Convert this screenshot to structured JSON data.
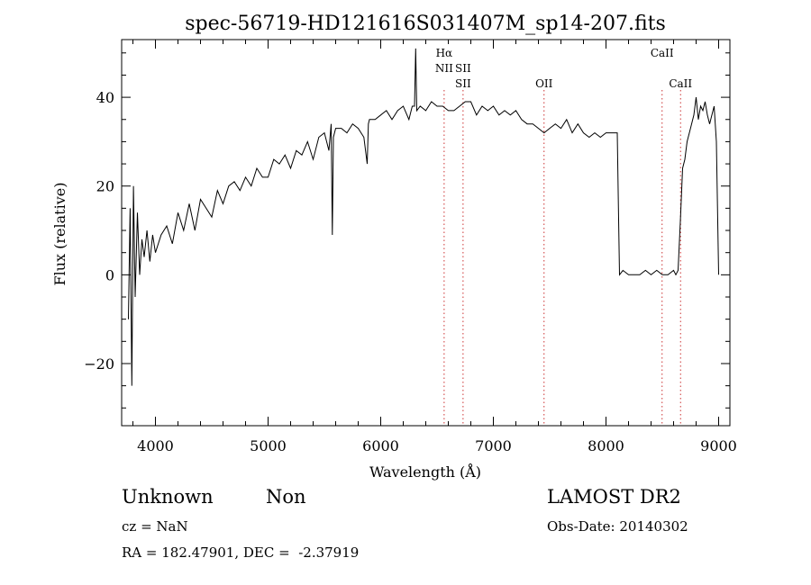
{
  "chart_data": {
    "type": "line",
    "title": "spec-56719-HD121616S031407M_sp14-207.fits",
    "xlabel": "Wavelength (Å)",
    "ylabel": "Flux (relative)",
    "xlim": [
      3700,
      9100
    ],
    "ylim": [
      -34,
      53
    ],
    "x_ticks": [
      4000,
      5000,
      6000,
      7000,
      8000,
      9000
    ],
    "y_ticks": [
      -20,
      0,
      20,
      40
    ],
    "grid": false,
    "line_color": "#000000",
    "marker_color": "#cc3333",
    "line_markers": [
      {
        "x": 6563,
        "labels": [
          "Hα",
          "NII"
        ]
      },
      {
        "x": 6731,
        "labels": [
          "SII",
          "SII"
        ]
      },
      {
        "x": 7450,
        "labels": [
          "OII"
        ]
      },
      {
        "x": 8498,
        "labels": [
          "CaII"
        ]
      },
      {
        "x": 8662,
        "labels": [
          "CaII"
        ]
      }
    ],
    "series": [
      {
        "x": [
          3760,
          3775,
          3790,
          3805,
          3820,
          3840,
          3860,
          3880,
          3900,
          3925,
          3950,
          3975,
          4000,
          4050,
          4100,
          4150,
          4200,
          4250,
          4300,
          4350,
          4400,
          4450,
          4500,
          4550,
          4600,
          4650,
          4700,
          4750,
          4800,
          4850,
          4900,
          4950,
          5000,
          5050,
          5100,
          5150,
          5200,
          5250,
          5300,
          5350,
          5400,
          5450,
          5500,
          5540,
          5560,
          5570,
          5580,
          5600,
          5650,
          5700,
          5750,
          5800,
          5850,
          5880,
          5890,
          5900,
          5950,
          6000,
          6050,
          6100,
          6150,
          6200,
          6250,
          6280,
          6300,
          6310,
          6320,
          6350,
          6400,
          6450,
          6500,
          6550,
          6600,
          6650,
          6700,
          6750,
          6800,
          6850,
          6900,
          6950,
          7000,
          7050,
          7100,
          7150,
          7200,
          7250,
          7300,
          7350,
          7400,
          7450,
          7500,
          7550,
          7600,
          7650,
          7700,
          7750,
          7800,
          7850,
          7900,
          7950,
          8000,
          8050,
          8100,
          8110,
          8120,
          8150,
          8200,
          8250,
          8300,
          8350,
          8400,
          8450,
          8500,
          8550,
          8600,
          8620,
          8640,
          8660,
          8680,
          8700,
          8720,
          8740,
          8760,
          8780,
          8800,
          8820,
          8840,
          8860,
          8880,
          8900,
          8920,
          8940,
          8960,
          8980,
          9000
        ],
        "y": [
          -10,
          15,
          -25,
          20,
          -5,
          14,
          0,
          8,
          4,
          10,
          3,
          9,
          5,
          9,
          11,
          7,
          14,
          10,
          16,
          10,
          17,
          15,
          13,
          19,
          16,
          20,
          21,
          19,
          22,
          20,
          24,
          22,
          22,
          26,
          25,
          27,
          24,
          28,
          27,
          30,
          26,
          31,
          32,
          28,
          34,
          9,
          31,
          33,
          33,
          32,
          34,
          33,
          31,
          25,
          34,
          35,
          35,
          36,
          37,
          35,
          37,
          38,
          35,
          38,
          38,
          51,
          37,
          38,
          37,
          39,
          38,
          38,
          37,
          37,
          38,
          39,
          39,
          36,
          38,
          37,
          38,
          36,
          37,
          36,
          37,
          35,
          34,
          34,
          33,
          32,
          33,
          34,
          33,
          35,
          32,
          34,
          32,
          31,
          32,
          31,
          32,
          32,
          32,
          15,
          0,
          1,
          0,
          0,
          0,
          1,
          0,
          1,
          0,
          0,
          1,
          0,
          1,
          12,
          24,
          26,
          30,
          32,
          34,
          36,
          40,
          35,
          38,
          37,
          39,
          36,
          34,
          36,
          38,
          30,
          0
        ]
      }
    ]
  },
  "info": {
    "class_label": "Unknown",
    "subclass_label": "Non",
    "cz": "cz = NaN",
    "coords": "RA = 182.47901, DEC =  -2.37919",
    "survey": "LAMOST DR2",
    "obs_date": "Obs-Date: 20140302"
  }
}
